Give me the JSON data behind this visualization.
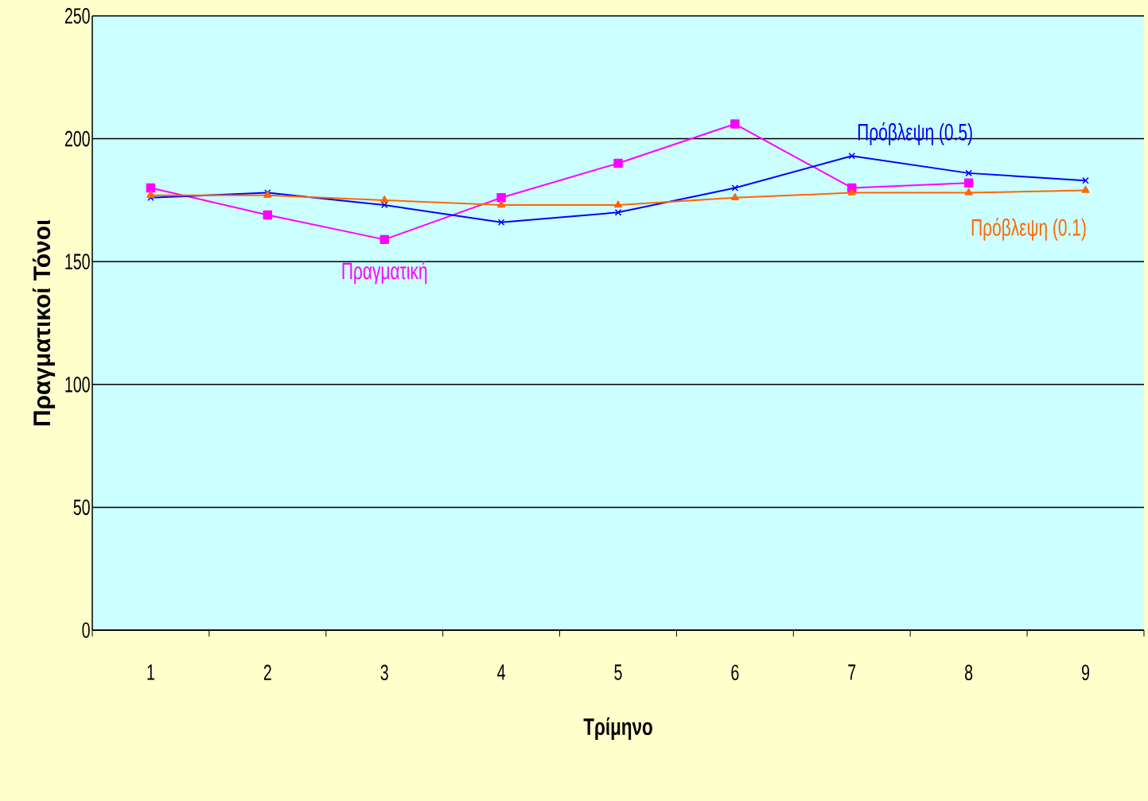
{
  "chart_data": {
    "type": "line",
    "xlabel": "Τρίμηνο",
    "ylabel": "Πραγματικοί Τόνοι",
    "categories": [
      "1",
      "2",
      "3",
      "4",
      "5",
      "6",
      "7",
      "8",
      "9"
    ],
    "series": [
      {
        "name": "Πραγματική",
        "color": "#ff00ff",
        "marker": "square",
        "values": [
          180,
          169,
          159,
          176,
          190,
          206,
          180,
          182,
          null
        ]
      },
      {
        "name": "Πρόβλεψη (0.5)",
        "color": "#0000ff",
        "marker": "cross",
        "values": [
          176,
          178,
          173,
          166,
          170,
          180,
          193,
          186,
          183
        ]
      },
      {
        "name": "Πρόβλεψη (0.1)",
        "color": "#ff6600",
        "marker": "triangle",
        "values": [
          177,
          177,
          175,
          173,
          173,
          176,
          178,
          178,
          179
        ]
      }
    ],
    "ylim": [
      0,
      250
    ],
    "yticks": [
      0,
      50,
      100,
      150,
      200,
      250
    ],
    "grid": "y"
  }
}
